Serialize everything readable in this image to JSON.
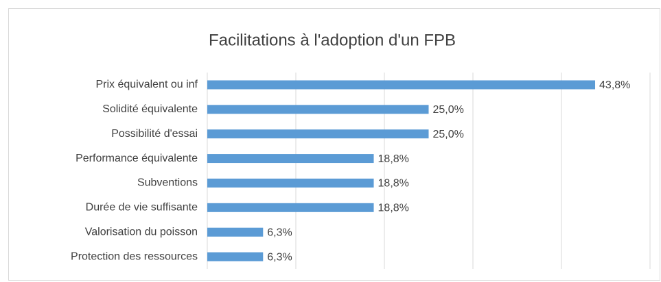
{
  "chart_data": {
    "type": "bar",
    "orientation": "horizontal",
    "title": "Facilitations à l'adoption d'un FPB",
    "categories": [
      "Prix équivalent ou inf",
      "Solidité équivalente",
      "Possibilité d'essai",
      "Performance équivalente",
      "Subventions",
      "Durée de vie suffisante",
      "Valorisation du poisson",
      "Protection des ressources"
    ],
    "values": [
      43.8,
      25.0,
      25.0,
      18.8,
      18.8,
      18.8,
      6.3,
      6.3
    ],
    "value_labels": [
      "43,8%",
      "25,0%",
      "25,0%",
      "18,8%",
      "18,8%",
      "18,8%",
      "6,3%",
      "6,3%"
    ],
    "color": "#5b9bd5",
    "xlim": [
      0,
      50
    ],
    "xticks": [
      0,
      10,
      20,
      30,
      40,
      50
    ],
    "grid": true
  }
}
